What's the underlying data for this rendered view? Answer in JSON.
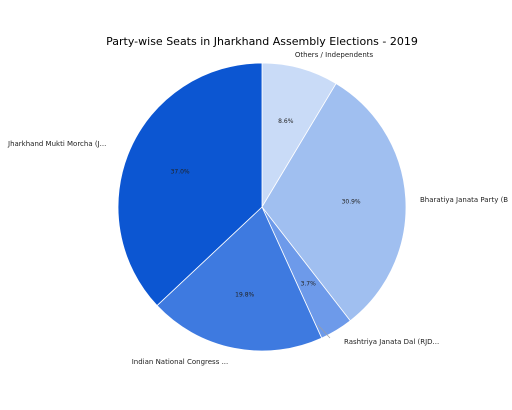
{
  "chart_data": {
    "type": "pie",
    "title": "Party-wise Seats in Jharkhand Assembly Elections - 2019",
    "slices": [
      {
        "label": "Others / Independents",
        "value": 8.6,
        "value_label": "8.6%",
        "color": "#c9dbf7"
      },
      {
        "label": "Bharatiya Janata Party (B",
        "value": 30.9,
        "value_label": "30.9%",
        "color": "#a0bff0"
      },
      {
        "label": "Rashtriya Janata Dal (RJD...",
        "value": 3.7,
        "value_label": "3.7%",
        "color": "#6d9aea"
      },
      {
        "label": "Indian National Congress ...",
        "value": 19.8,
        "value_label": "19.8%",
        "color": "#3e7ae0"
      },
      {
        "label": "Jharkhand Mukti Morcha (J...",
        "value": 37.0,
        "value_label": "37.0%",
        "color": "#0c56d2"
      }
    ],
    "start_angle_deg": 0,
    "direction": "clockwise",
    "legend": "none",
    "grid": false
  }
}
